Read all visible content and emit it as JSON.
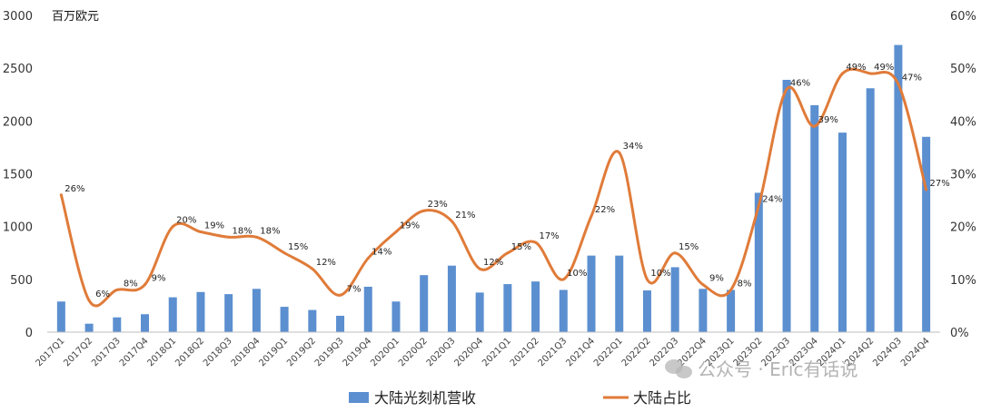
{
  "chart_data": {
    "type": "bar+line",
    "unit_label": "百万欧元",
    "categories": [
      "2017Q1",
      "2017Q2",
      "2017Q3",
      "2017Q4",
      "2018Q1",
      "2018Q2",
      "2018Q3",
      "2018Q4",
      "2019Q1",
      "2019Q2",
      "2019Q3",
      "2019Q4",
      "2020Q1",
      "2020Q2",
      "2020Q3",
      "2020Q4",
      "2021Q1",
      "2021Q2",
      "2021Q3",
      "2021Q4",
      "2022Q1",
      "2022Q2",
      "2022Q3",
      "2022Q4",
      "2023Q1",
      "2023Q2",
      "2023Q3",
      "2023Q4",
      "2024Q1",
      "2024Q2",
      "2024Q3",
      "2024Q4"
    ],
    "series": [
      {
        "name": "大陆光刻机营收",
        "type": "bar",
        "axis": "left",
        "color": "#5b8fd0",
        "values": [
          290,
          80,
          140,
          170,
          330,
          380,
          360,
          410,
          240,
          210,
          155,
          430,
          290,
          540,
          630,
          375,
          455,
          480,
          400,
          725,
          725,
          395,
          615,
          410,
          400,
          1320,
          2390,
          2150,
          1890,
          2310,
          2720,
          1850
        ]
      },
      {
        "name": "大陆占比",
        "type": "line",
        "axis": "right",
        "color": "#e07b39",
        "values": [
          26,
          6,
          8,
          9,
          20,
          19,
          18,
          18,
          15,
          12,
          7,
          14,
          19,
          23,
          21,
          12,
          15,
          17,
          10,
          22,
          34,
          10,
          15,
          9,
          8,
          24,
          46,
          39,
          49,
          49,
          47,
          27
        ],
        "labels": [
          "26%",
          "6%",
          "8%",
          "9%",
          "20%",
          "19%",
          "18%",
          "18%",
          "15%",
          "12%",
          "7%",
          "14%",
          "19%",
          "23%",
          "21%",
          "12%",
          "15%",
          "17%",
          "10%",
          "22%",
          "34%",
          "10%",
          "15%",
          "9%",
          "8%",
          "24%",
          "46%",
          "39%",
          "49%",
          "49%",
          "47%",
          "27%"
        ]
      }
    ],
    "y_left": {
      "min": 0,
      "max": 3000,
      "ticks": [
        "0",
        "500",
        "1000",
        "1500",
        "2000",
        "2500",
        "3000"
      ]
    },
    "y_right": {
      "min": 0,
      "max": 60,
      "ticks": [
        "0%",
        "10%",
        "20%",
        "30%",
        "40%",
        "50%",
        "60%"
      ]
    },
    "grid": false,
    "legend_position": "bottom"
  },
  "watermark": {
    "text": "公众号 · Eric有话说"
  },
  "colors": {
    "bar": "#5b8fd0",
    "line": "#e07b39"
  }
}
